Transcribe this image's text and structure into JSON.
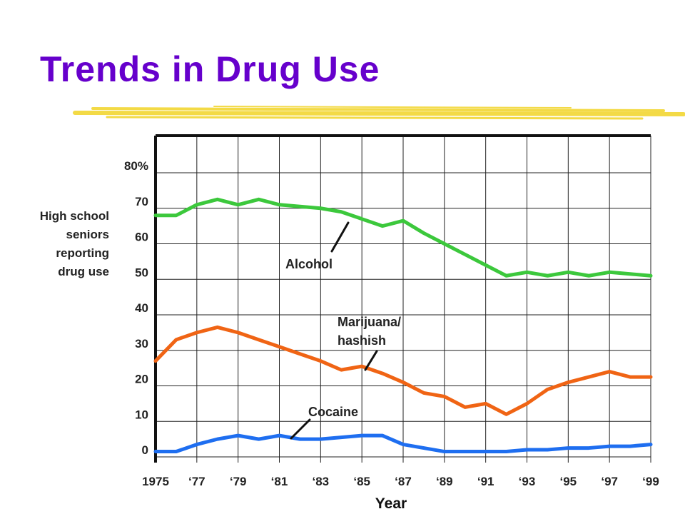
{
  "slide": {
    "title": "Trends in Drug Use",
    "title_color": "#6600cc",
    "underline_color": "#f2d633"
  },
  "chart_data": {
    "type": "line",
    "title": "",
    "xlabel": "Year",
    "ylabel": [
      "High school",
      "seniors",
      "reporting",
      "drug use"
    ],
    "ylim": [
      0,
      80
    ],
    "xlim": [
      1975,
      1999
    ],
    "yticks": [
      0,
      10,
      20,
      30,
      40,
      50,
      60,
      70,
      80
    ],
    "ytick_labels": [
      "0",
      "10",
      "20",
      "30",
      "40",
      "50",
      "60",
      "70",
      "80%"
    ],
    "xticks": [
      1975,
      1977,
      1979,
      1981,
      1983,
      1985,
      1987,
      1989,
      1991,
      1993,
      1995,
      1997,
      1999
    ],
    "xtick_labels": [
      "1975",
      "‘77",
      "‘79",
      "‘81",
      "‘83",
      "‘85",
      "‘87",
      "‘89",
      "‘91",
      "‘93",
      "‘95",
      "‘97",
      "‘99"
    ],
    "grid": "horizontal and vertical",
    "x": [
      1975,
      1976,
      1977,
      1978,
      1979,
      1980,
      1981,
      1982,
      1983,
      1984,
      1985,
      1986,
      1987,
      1988,
      1989,
      1990,
      1991,
      1992,
      1993,
      1994,
      1995,
      1996,
      1997,
      1998,
      1999
    ],
    "series": [
      {
        "name": "Alcohol",
        "label_lines": [
          "Alcohol"
        ],
        "color": "#3cc83c",
        "values": [
          68,
          68,
          71,
          72.5,
          71,
          72.5,
          71,
          70.5,
          70,
          69,
          67,
          65,
          66.5,
          63,
          60,
          57,
          54,
          51,
          52,
          51,
          52,
          51,
          52,
          51.5,
          51
        ]
      },
      {
        "name": "Marijuana/ hashish",
        "label_lines": [
          "Marijuana/",
          "hashish"
        ],
        "color": "#f06414",
        "values": [
          27,
          33,
          35,
          36.5,
          35,
          33,
          31,
          29,
          27,
          24.5,
          25.5,
          23.5,
          21,
          18,
          17,
          14,
          15,
          12,
          15,
          19,
          21,
          22.5,
          24,
          22.5,
          22.5
        ]
      },
      {
        "name": "Cocaine",
        "label_lines": [
          "Cocaine"
        ],
        "color": "#1e6ef0",
        "values": [
          1.5,
          1.5,
          3.5,
          5,
          6,
          5,
          6,
          5,
          5,
          5.5,
          6,
          6,
          3.5,
          2.5,
          1.5,
          1.5,
          1.5,
          1.5,
          2,
          2,
          2.5,
          2.5,
          3,
          3,
          3.5
        ]
      }
    ]
  }
}
